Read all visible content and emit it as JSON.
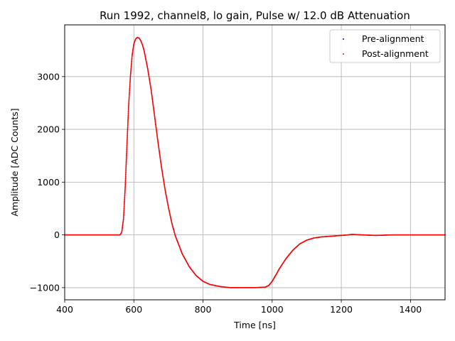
{
  "chart_data": {
    "type": "scatter",
    "title": "Run 1992, channel8, lo gain, Pulse w/ 12.0 dB Attenuation",
    "xlabel": "Time [ns]",
    "ylabel": "Amplitude [ADC Counts]",
    "xlim": [
      400,
      1500
    ],
    "ylim": [
      -1230,
      3980
    ],
    "xticks": [
      400,
      600,
      800,
      1000,
      1200,
      1400
    ],
    "yticks": [
      -1000,
      0,
      1000,
      2000,
      3000
    ],
    "grid": true,
    "legend_position": "top-right",
    "series": [
      {
        "name": "Pre-alignment",
        "color": "#0000ff",
        "x": [
          400,
          560,
          565,
          570,
          575,
          580,
          585,
          590,
          595,
          600,
          605,
          610,
          615,
          620,
          625,
          630,
          640,
          650,
          660,
          670,
          680,
          690,
          700,
          710,
          720,
          740,
          760,
          780,
          800,
          820,
          850,
          880,
          900,
          950,
          980,
          990,
          1000,
          1010,
          1020,
          1040,
          1060,
          1080,
          1100,
          1120,
          1140,
          1160,
          1180,
          1200,
          1220,
          1230,
          1260,
          1300,
          1350,
          1400,
          1450,
          1500
        ],
        "y": [
          0,
          0,
          50,
          300,
          900,
          1700,
          2450,
          3000,
          3400,
          3620,
          3710,
          3740,
          3730,
          3680,
          3600,
          3480,
          3150,
          2750,
          2250,
          1750,
          1280,
          870,
          520,
          220,
          -20,
          -360,
          -600,
          -770,
          -880,
          -940,
          -980,
          -1000,
          -1000,
          -1000,
          -990,
          -960,
          -880,
          -770,
          -650,
          -450,
          -290,
          -170,
          -100,
          -60,
          -40,
          -30,
          -20,
          -10,
          0,
          10,
          0,
          -10,
          0,
          0,
          0,
          0
        ]
      },
      {
        "name": "Post-alignment",
        "color": "#ff0000",
        "x": [
          400,
          560,
          565,
          570,
          575,
          580,
          585,
          590,
          595,
          600,
          605,
          610,
          615,
          620,
          625,
          630,
          640,
          650,
          660,
          670,
          680,
          690,
          700,
          710,
          720,
          740,
          760,
          780,
          800,
          820,
          850,
          880,
          900,
          950,
          980,
          990,
          1000,
          1010,
          1020,
          1040,
          1060,
          1080,
          1100,
          1120,
          1140,
          1160,
          1180,
          1200,
          1220,
          1230,
          1260,
          1300,
          1350,
          1400,
          1450,
          1500
        ],
        "y": [
          0,
          0,
          50,
          300,
          900,
          1700,
          2450,
          3000,
          3400,
          3620,
          3710,
          3740,
          3730,
          3680,
          3600,
          3480,
          3150,
          2750,
          2250,
          1750,
          1280,
          870,
          520,
          220,
          -20,
          -360,
          -600,
          -770,
          -880,
          -940,
          -980,
          -1000,
          -1000,
          -1000,
          -990,
          -960,
          -880,
          -770,
          -650,
          -450,
          -290,
          -170,
          -100,
          -60,
          -40,
          -30,
          -20,
          -10,
          0,
          10,
          0,
          -10,
          0,
          0,
          0,
          0
        ]
      }
    ]
  }
}
